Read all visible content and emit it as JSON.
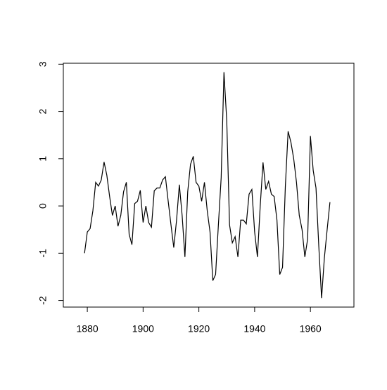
{
  "chart_data": {
    "type": "line",
    "x": [
      1879,
      1880,
      1881,
      1882,
      1883,
      1884,
      1885,
      1886,
      1887,
      1888,
      1889,
      1890,
      1891,
      1892,
      1893,
      1894,
      1895,
      1896,
      1897,
      1898,
      1899,
      1900,
      1901,
      1902,
      1903,
      1904,
      1905,
      1906,
      1907,
      1908,
      1909,
      1910,
      1911,
      1912,
      1913,
      1914,
      1915,
      1916,
      1917,
      1918,
      1919,
      1920,
      1921,
      1922,
      1923,
      1924,
      1925,
      1926,
      1927,
      1928,
      1929,
      1930,
      1931,
      1932,
      1933,
      1934,
      1935,
      1936,
      1937,
      1938,
      1939,
      1940,
      1941,
      1942,
      1943,
      1944,
      1945,
      1946,
      1947,
      1948,
      1949,
      1950,
      1951,
      1952,
      1953,
      1954,
      1955,
      1956,
      1957,
      1958,
      1959,
      1960,
      1961,
      1962,
      1963,
      1964,
      1965,
      1966,
      1967
    ],
    "values": [
      -1.0,
      -0.55,
      -0.48,
      -0.1,
      0.5,
      0.42,
      0.55,
      0.93,
      0.65,
      0.2,
      -0.2,
      0.0,
      -0.43,
      -0.2,
      0.3,
      0.5,
      -0.6,
      -0.82,
      0.05,
      0.1,
      0.33,
      -0.35,
      0.0,
      -0.35,
      -0.45,
      0.32,
      0.38,
      0.38,
      0.55,
      0.62,
      0.1,
      -0.4,
      -0.88,
      -0.3,
      0.45,
      -0.2,
      -1.08,
      0.3,
      0.88,
      1.05,
      0.5,
      0.42,
      0.1,
      0.5,
      -0.1,
      -0.55,
      -1.58,
      -1.45,
      -0.4,
      0.6,
      2.83,
      1.8,
      -0.4,
      -0.78,
      -0.65,
      -1.08,
      -0.3,
      -0.3,
      -0.38,
      0.25,
      0.35,
      -0.55,
      -1.08,
      0.0,
      0.92,
      0.35,
      0.52,
      0.25,
      0.2,
      -0.3,
      -1.45,
      -1.3,
      0.4,
      1.58,
      1.35,
      1.0,
      0.5,
      -0.2,
      -0.5,
      -1.08,
      -0.7,
      1.48,
      0.75,
      0.38,
      -0.85,
      -1.95,
      -1.1,
      -0.5,
      0.08
    ],
    "color": "#000000",
    "xlim": [
      1871.4,
      1975.6
    ],
    "ylim": [
      -2.14,
      3.02
    ],
    "xticks": [
      1880,
      1900,
      1920,
      1940,
      1960
    ],
    "yticks": [
      -2,
      -1,
      0,
      1,
      2,
      3
    ],
    "grid": false
  }
}
